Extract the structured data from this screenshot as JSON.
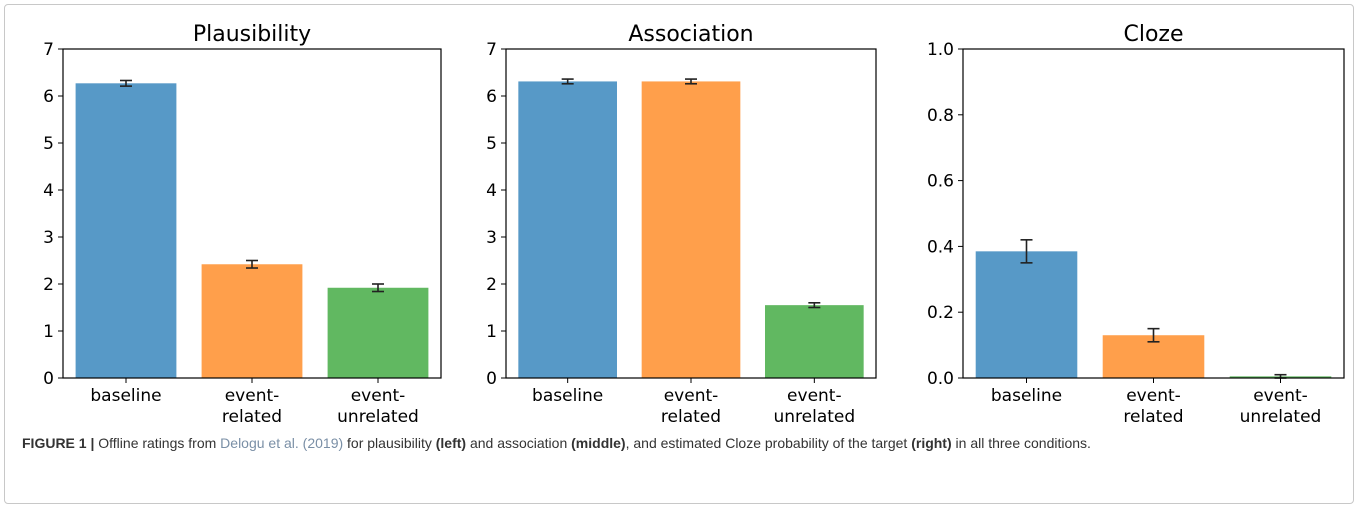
{
  "figure": {
    "caption": {
      "label": "FIGURE 1 |",
      "t1": " Offline ratings from ",
      "ref": "Delogu et al. (2019)",
      "t2": " for plausibility ",
      "b1": "(left)",
      "t3": " and association ",
      "b2": "(middle)",
      "t4": ", and estimated Cloze probability of the target ",
      "b3": "(right)",
      "t5": " in all three conditions."
    }
  },
  "colors": {
    "baseline": "#5799c7",
    "event_related": "#ff9f4b",
    "event_unrelated": "#61b861"
  },
  "chart_data": [
    {
      "type": "bar",
      "title": "Plausibility",
      "categories": [
        "baseline",
        "event-related",
        "event-unrelated"
      ],
      "category_lines": [
        [
          "baseline"
        ],
        [
          "event-",
          "related"
        ],
        [
          "event-",
          "unrelated"
        ]
      ],
      "values": [
        6.27,
        2.42,
        1.92
      ],
      "errors": [
        0.06,
        0.08,
        0.08
      ],
      "ylim": [
        0,
        7
      ],
      "yticks": [
        0,
        1,
        2,
        3,
        4,
        5,
        6,
        7
      ],
      "ytick_labels": [
        "0",
        "1",
        "2",
        "3",
        "4",
        "5",
        "6",
        "7"
      ],
      "xlabel": "",
      "ylabel": "",
      "grid": false
    },
    {
      "type": "bar",
      "title": "Association",
      "categories": [
        "baseline",
        "event-related",
        "event-unrelated"
      ],
      "category_lines": [
        [
          "baseline"
        ],
        [
          "event-",
          "related"
        ],
        [
          "event-",
          "unrelated"
        ]
      ],
      "values": [
        6.31,
        6.31,
        1.55
      ],
      "errors": [
        0.05,
        0.05,
        0.05
      ],
      "ylim": [
        0,
        7
      ],
      "yticks": [
        0,
        1,
        2,
        3,
        4,
        5,
        6,
        7
      ],
      "ytick_labels": [
        "0",
        "1",
        "2",
        "3",
        "4",
        "5",
        "6",
        "7"
      ],
      "xlabel": "",
      "ylabel": "",
      "grid": false
    },
    {
      "type": "bar",
      "title": "Cloze",
      "categories": [
        "baseline",
        "event-related",
        "event-unrelated"
      ],
      "category_lines": [
        [
          "baseline"
        ],
        [
          "event-",
          "related"
        ],
        [
          "event-",
          "unrelated"
        ]
      ],
      "values": [
        0.385,
        0.13,
        0.005
      ],
      "errors": [
        0.035,
        0.02,
        0.005
      ],
      "ylim": [
        0,
        1.0
      ],
      "yticks": [
        0,
        0.2,
        0.4,
        0.6,
        0.8,
        1.0
      ],
      "ytick_labels": [
        "0.0",
        "0.2",
        "0.4",
        "0.6",
        "0.8",
        "1.0"
      ],
      "xlabel": "",
      "ylabel": "",
      "grid": false
    }
  ]
}
